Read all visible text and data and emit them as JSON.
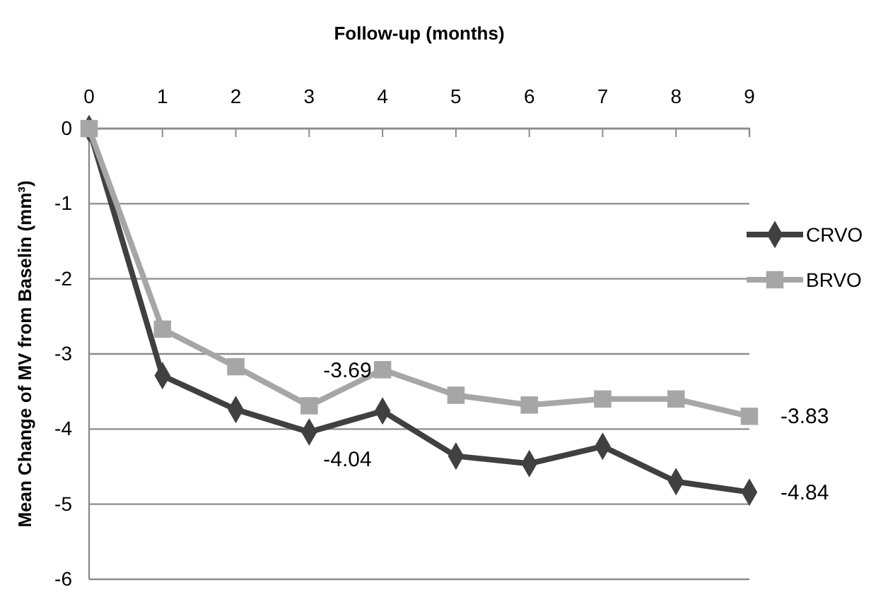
{
  "chart_data": {
    "type": "line",
    "xlabel": "Follow-up (months)",
    "ylabel": "Mean Change of MV from Baselin (mm³)",
    "x": [
      0,
      1,
      2,
      3,
      4,
      5,
      6,
      7,
      8,
      9
    ],
    "xlim": [
      0,
      9
    ],
    "xticks": [
      0,
      1,
      2,
      3,
      4,
      5,
      6,
      7,
      8,
      9
    ],
    "ylim": [
      -6,
      0
    ],
    "yticks": [
      0,
      -1,
      -2,
      -3,
      -4,
      -5,
      -6
    ],
    "grid": "y",
    "legend": "right",
    "series": [
      {
        "name": "CRVO",
        "color": "#404040",
        "marker": "diamond",
        "values": [
          0,
          -3.29,
          -3.74,
          -4.04,
          -3.76,
          -4.36,
          -4.46,
          -4.23,
          -4.7,
          -4.84
        ],
        "value_labels": [
          null,
          null,
          null,
          "-4.04",
          null,
          null,
          null,
          null,
          null,
          "-4.84"
        ]
      },
      {
        "name": "BRVO",
        "color": "#a6a6a6",
        "marker": "square",
        "values": [
          0,
          -2.67,
          -3.17,
          -3.69,
          -3.21,
          -3.55,
          -3.68,
          -3.6,
          -3.6,
          -3.83
        ],
        "value_labels": [
          null,
          null,
          null,
          "-3.69",
          null,
          null,
          null,
          null,
          null,
          "-3.83"
        ]
      }
    ]
  }
}
